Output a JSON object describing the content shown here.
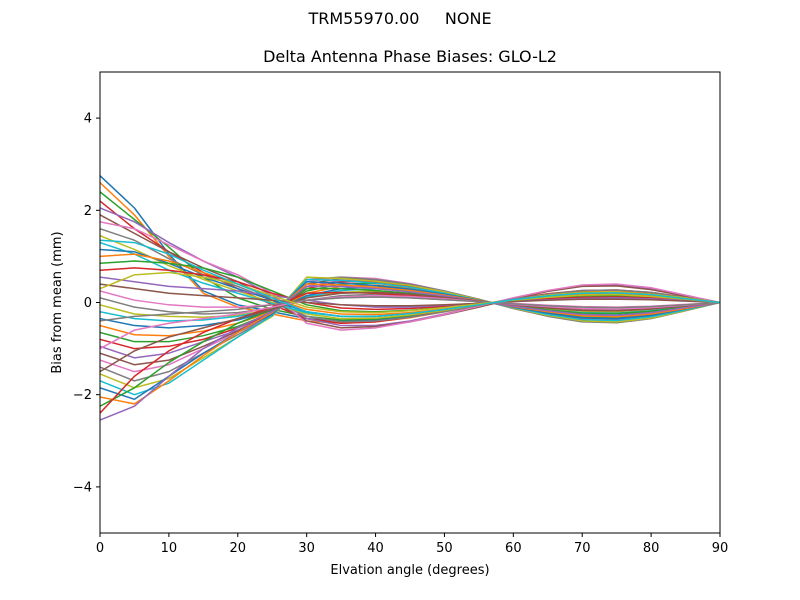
{
  "chart_data": {
    "type": "line",
    "suptitle": "TRM55970.00     NONE",
    "title": "Delta Antenna Phase Biases: GLO-L2",
    "xlabel": "Elvation angle (degrees)",
    "ylabel": "Bias from mean (mm)",
    "xlim": [
      0,
      90
    ],
    "ylim": [
      -5,
      5
    ],
    "xticks": [
      0,
      10,
      20,
      30,
      40,
      50,
      60,
      70,
      80,
      90
    ],
    "yticks": [
      -4,
      -2,
      0,
      2,
      4
    ],
    "xtick_labels": [
      "0",
      "10",
      "20",
      "30",
      "40",
      "50",
      "60",
      "70",
      "80",
      "90"
    ],
    "ytick_labels": [
      "−4",
      "−2",
      "0",
      "2",
      "4"
    ],
    "grid": false,
    "legend": "none",
    "colors": [
      "#1f77b4",
      "#ff7f0e",
      "#2ca02c",
      "#d62728",
      "#9467bd",
      "#8c564b",
      "#e377c2",
      "#7f7f7f",
      "#bcbd22",
      "#17becf"
    ],
    "x": [
      0,
      5,
      10,
      15,
      20,
      25,
      30,
      35,
      40,
      45,
      50,
      55,
      60,
      65,
      70,
      75,
      80,
      85,
      90
    ],
    "series": [
      {
        "values": [
          2.75,
          2.05,
          1.05,
          0.25,
          -0.05,
          -0.2,
          -0.35,
          -0.4,
          -0.38,
          -0.3,
          -0.18,
          -0.06,
          0.06,
          0.16,
          0.22,
          0.22,
          0.18,
          0.1,
          0.0
        ]
      },
      {
        "values": [
          2.6,
          1.9,
          1.0,
          0.2,
          -0.1,
          -0.25,
          -0.4,
          -0.45,
          -0.42,
          -0.33,
          -0.2,
          -0.07,
          0.07,
          0.18,
          0.25,
          0.26,
          0.2,
          0.11,
          0.0
        ]
      },
      {
        "values": [
          2.4,
          1.8,
          1.2,
          0.55,
          0.1,
          -0.15,
          -0.3,
          -0.38,
          -0.36,
          -0.28,
          -0.17,
          -0.05,
          0.06,
          0.15,
          0.21,
          0.21,
          0.17,
          0.09,
          0.0
        ]
      },
      {
        "values": [
          2.2,
          1.6,
          1.1,
          0.65,
          0.3,
          -0.05,
          -0.35,
          -0.45,
          -0.42,
          -0.32,
          -0.18,
          -0.05,
          0.08,
          0.19,
          0.26,
          0.27,
          0.22,
          0.12,
          0.0
        ]
      },
      {
        "values": [
          2.05,
          1.75,
          1.3,
          0.9,
          0.55,
          0.15,
          -0.35,
          -0.5,
          -0.5,
          -0.4,
          -0.25,
          -0.08,
          0.1,
          0.25,
          0.36,
          0.38,
          0.3,
          0.15,
          0.0
        ]
      },
      {
        "values": [
          1.9,
          1.5,
          1.1,
          0.75,
          0.45,
          0.05,
          -0.4,
          -0.55,
          -0.52,
          -0.42,
          -0.27,
          -0.1,
          0.08,
          0.24,
          0.35,
          0.36,
          0.28,
          0.14,
          0.0
        ]
      },
      {
        "values": [
          1.75,
          1.6,
          1.25,
          0.9,
          0.6,
          0.2,
          -0.45,
          -0.6,
          -0.55,
          -0.42,
          -0.26,
          -0.08,
          0.1,
          0.26,
          0.38,
          0.4,
          0.32,
          0.16,
          0.0
        ]
      },
      {
        "values": [
          1.6,
          1.35,
          0.95,
          0.6,
          0.35,
          0.05,
          -0.3,
          -0.42,
          -0.4,
          -0.32,
          -0.2,
          -0.06,
          0.07,
          0.18,
          0.26,
          0.27,
          0.22,
          0.11,
          0.0
        ]
      },
      {
        "values": [
          1.45,
          1.15,
          0.8,
          0.5,
          0.25,
          0.0,
          -0.25,
          -0.35,
          -0.34,
          -0.27,
          -0.17,
          -0.05,
          0.06,
          0.16,
          0.22,
          0.23,
          0.18,
          0.1,
          0.0
        ]
      },
      {
        "values": [
          1.3,
          1.05,
          0.7,
          0.42,
          0.2,
          -0.02,
          -0.22,
          -0.3,
          -0.3,
          -0.24,
          -0.15,
          -0.04,
          0.06,
          0.14,
          0.2,
          0.2,
          0.16,
          0.08,
          0.0
        ]
      },
      {
        "values": [
          1.15,
          1.1,
          0.85,
          0.55,
          0.3,
          0.05,
          -0.2,
          -0.3,
          -0.3,
          -0.24,
          -0.15,
          -0.05,
          0.06,
          0.14,
          0.19,
          0.2,
          0.16,
          0.08,
          0.0
        ]
      },
      {
        "values": [
          1.0,
          1.05,
          0.9,
          0.65,
          0.4,
          0.1,
          -0.15,
          -0.25,
          -0.26,
          -0.22,
          -0.14,
          -0.05,
          0.05,
          0.12,
          0.17,
          0.18,
          0.14,
          0.07,
          0.0
        ]
      },
      {
        "values": [
          0.85,
          0.9,
          0.85,
          0.75,
          0.55,
          0.25,
          -0.05,
          -0.18,
          -0.2,
          -0.17,
          -0.1,
          -0.03,
          0.04,
          0.1,
          0.14,
          0.15,
          0.12,
          0.06,
          0.0
        ]
      },
      {
        "values": [
          0.7,
          0.75,
          0.7,
          0.6,
          0.45,
          0.2,
          0.0,
          -0.12,
          -0.15,
          -0.13,
          -0.08,
          -0.02,
          0.03,
          0.08,
          0.11,
          0.12,
          0.1,
          0.05,
          0.0
        ]
      },
      {
        "values": [
          0.55,
          0.45,
          0.35,
          0.3,
          0.25,
          0.15,
          0.05,
          -0.05,
          -0.1,
          -0.1,
          -0.06,
          -0.02,
          0.03,
          0.06,
          0.09,
          0.1,
          0.08,
          0.04,
          0.0
        ]
      },
      {
        "values": [
          0.4,
          0.3,
          0.2,
          0.15,
          0.1,
          0.05,
          0.0,
          -0.05,
          -0.07,
          -0.07,
          -0.05,
          -0.02,
          0.02,
          0.05,
          0.07,
          0.07,
          0.06,
          0.03,
          0.0
        ]
      },
      {
        "values": [
          0.25,
          0.05,
          -0.05,
          -0.1,
          -0.1,
          -0.05,
          0.05,
          0.1,
          0.12,
          0.1,
          0.06,
          0.02,
          -0.02,
          -0.06,
          -0.09,
          -0.1,
          -0.08,
          -0.04,
          0.0
        ]
      },
      {
        "values": [
          0.1,
          -0.1,
          -0.2,
          -0.25,
          -0.22,
          -0.12,
          0.05,
          0.15,
          0.18,
          0.15,
          0.1,
          0.03,
          -0.04,
          -0.1,
          -0.14,
          -0.15,
          -0.12,
          -0.06,
          0.0
        ]
      },
      {
        "values": [
          -0.05,
          -0.25,
          -0.3,
          -0.32,
          -0.28,
          -0.15,
          0.1,
          0.22,
          0.25,
          0.2,
          0.12,
          0.03,
          -0.06,
          -0.14,
          -0.19,
          -0.2,
          -0.16,
          -0.08,
          0.0
        ]
      },
      {
        "values": [
          -0.2,
          -0.35,
          -0.4,
          -0.38,
          -0.3,
          -0.15,
          0.12,
          0.26,
          0.3,
          0.25,
          0.15,
          0.04,
          -0.07,
          -0.16,
          -0.22,
          -0.23,
          -0.18,
          -0.09,
          0.0
        ]
      },
      {
        "values": [
          -0.35,
          -0.5,
          -0.55,
          -0.5,
          -0.38,
          -0.18,
          0.15,
          0.3,
          0.34,
          0.28,
          0.17,
          0.05,
          -0.08,
          -0.19,
          -0.26,
          -0.27,
          -0.21,
          -0.11,
          0.0
        ]
      },
      {
        "values": [
          -0.5,
          -0.7,
          -0.72,
          -0.62,
          -0.45,
          -0.2,
          0.2,
          0.35,
          0.38,
          0.31,
          0.19,
          0.05,
          -0.09,
          -0.21,
          -0.29,
          -0.3,
          -0.24,
          -0.12,
          0.0
        ]
      },
      {
        "values": [
          -0.65,
          -0.85,
          -0.85,
          -0.72,
          -0.52,
          -0.22,
          0.25,
          0.4,
          0.42,
          0.34,
          0.2,
          0.05,
          -0.1,
          -0.23,
          -0.32,
          -0.33,
          -0.26,
          -0.13,
          0.0
        ]
      },
      {
        "values": [
          -0.8,
          -1.0,
          -0.95,
          -0.8,
          -0.55,
          -0.25,
          0.3,
          0.45,
          0.45,
          0.36,
          0.22,
          0.06,
          -0.11,
          -0.25,
          -0.35,
          -0.36,
          -0.28,
          -0.14,
          0.0
        ]
      },
      {
        "values": [
          -0.95,
          -1.2,
          -1.1,
          -0.85,
          -0.6,
          -0.25,
          0.35,
          0.48,
          0.48,
          0.38,
          0.23,
          0.06,
          -0.12,
          -0.27,
          -0.37,
          -0.38,
          -0.3,
          -0.15,
          0.0
        ]
      },
      {
        "values": [
          -1.1,
          -1.35,
          -1.25,
          -0.95,
          -0.62,
          -0.28,
          0.4,
          0.52,
          0.5,
          0.4,
          0.24,
          0.06,
          -0.12,
          -0.28,
          -0.39,
          -0.4,
          -0.32,
          -0.16,
          0.0
        ]
      },
      {
        "values": [
          -1.25,
          -1.5,
          -1.35,
          -1.0,
          -0.65,
          -0.3,
          0.45,
          0.55,
          0.52,
          0.41,
          0.25,
          0.07,
          -0.13,
          -0.29,
          -0.4,
          -0.42,
          -0.33,
          -0.17,
          0.0
        ]
      },
      {
        "values": [
          -1.4,
          -1.7,
          -1.5,
          -1.1,
          -0.7,
          -0.3,
          0.5,
          0.55,
          0.5,
          0.4,
          0.25,
          0.07,
          -0.13,
          -0.3,
          -0.42,
          -0.44,
          -0.35,
          -0.18,
          0.0
        ]
      },
      {
        "values": [
          -1.55,
          -1.85,
          -1.65,
          -1.2,
          -0.75,
          -0.3,
          0.55,
          0.52,
          0.46,
          0.37,
          0.23,
          0.06,
          -0.12,
          -0.28,
          -0.4,
          -0.42,
          -0.34,
          -0.17,
          0.0
        ]
      },
      {
        "values": [
          -1.7,
          -2.0,
          -1.75,
          -1.25,
          -0.75,
          -0.28,
          0.5,
          0.48,
          0.42,
          0.33,
          0.2,
          0.05,
          -0.11,
          -0.26,
          -0.37,
          -0.39,
          -0.31,
          -0.16,
          0.0
        ]
      },
      {
        "values": [
          -1.85,
          -2.1,
          -1.6,
          -1.1,
          -0.65,
          -0.25,
          0.45,
          0.42,
          0.37,
          0.29,
          0.18,
          0.05,
          -0.1,
          -0.23,
          -0.33,
          -0.35,
          -0.28,
          -0.14,
          0.0
        ]
      },
      {
        "values": [
          -2.05,
          -2.2,
          -1.7,
          -1.15,
          -0.65,
          -0.22,
          0.4,
          0.38,
          0.33,
          0.26,
          0.16,
          0.04,
          -0.09,
          -0.2,
          -0.29,
          -0.31,
          -0.25,
          -0.13,
          0.0
        ]
      },
      {
        "values": [
          -2.25,
          -1.85,
          -1.3,
          -0.85,
          -0.45,
          -0.15,
          0.3,
          0.3,
          0.26,
          0.2,
          0.12,
          0.03,
          -0.07,
          -0.16,
          -0.23,
          -0.24,
          -0.19,
          -0.1,
          0.0
        ]
      },
      {
        "values": [
          -2.4,
          -1.6,
          -1.05,
          -0.65,
          -0.35,
          -0.1,
          0.2,
          0.22,
          0.2,
          0.15,
          0.09,
          0.02,
          -0.05,
          -0.12,
          -0.17,
          -0.18,
          -0.14,
          -0.07,
          0.0
        ]
      },
      {
        "values": [
          -2.55,
          -2.25,
          -1.6,
          -1.0,
          -0.55,
          -0.2,
          0.35,
          0.35,
          0.3,
          0.23,
          0.14,
          0.03,
          -0.08,
          -0.18,
          -0.26,
          -0.28,
          -0.22,
          -0.11,
          0.0
        ]
      },
      {
        "values": [
          -1.5,
          -1.05,
          -0.75,
          -0.55,
          -0.35,
          -0.15,
          0.1,
          0.2,
          0.22,
          0.18,
          0.11,
          0.03,
          -0.05,
          -0.12,
          -0.17,
          -0.18,
          -0.14,
          -0.07,
          0.0
        ]
      },
      {
        "values": [
          -1.0,
          -0.6,
          -0.45,
          -0.35,
          -0.25,
          -0.1,
          0.05,
          0.12,
          0.15,
          0.13,
          0.08,
          0.02,
          -0.04,
          -0.09,
          -0.13,
          -0.14,
          -0.11,
          -0.06,
          0.0
        ]
      },
      {
        "values": [
          -0.4,
          -0.3,
          -0.25,
          -0.2,
          -0.15,
          -0.05,
          0.05,
          0.1,
          0.12,
          0.1,
          0.06,
          0.02,
          -0.03,
          -0.07,
          -0.1,
          -0.11,
          -0.09,
          -0.05,
          0.0
        ]
      },
      {
        "values": [
          0.3,
          0.6,
          0.65,
          0.55,
          0.4,
          0.15,
          -0.1,
          -0.2,
          -0.22,
          -0.18,
          -0.11,
          -0.03,
          0.05,
          0.11,
          0.16,
          0.17,
          0.13,
          0.07,
          0.0
        ]
      },
      {
        "values": [
          1.35,
          1.3,
          1.05,
          0.7,
          0.4,
          0.1,
          -0.2,
          -0.3,
          -0.3,
          -0.24,
          -0.15,
          -0.05,
          0.06,
          0.14,
          0.2,
          0.21,
          0.17,
          0.08,
          0.0
        ]
      }
    ]
  }
}
